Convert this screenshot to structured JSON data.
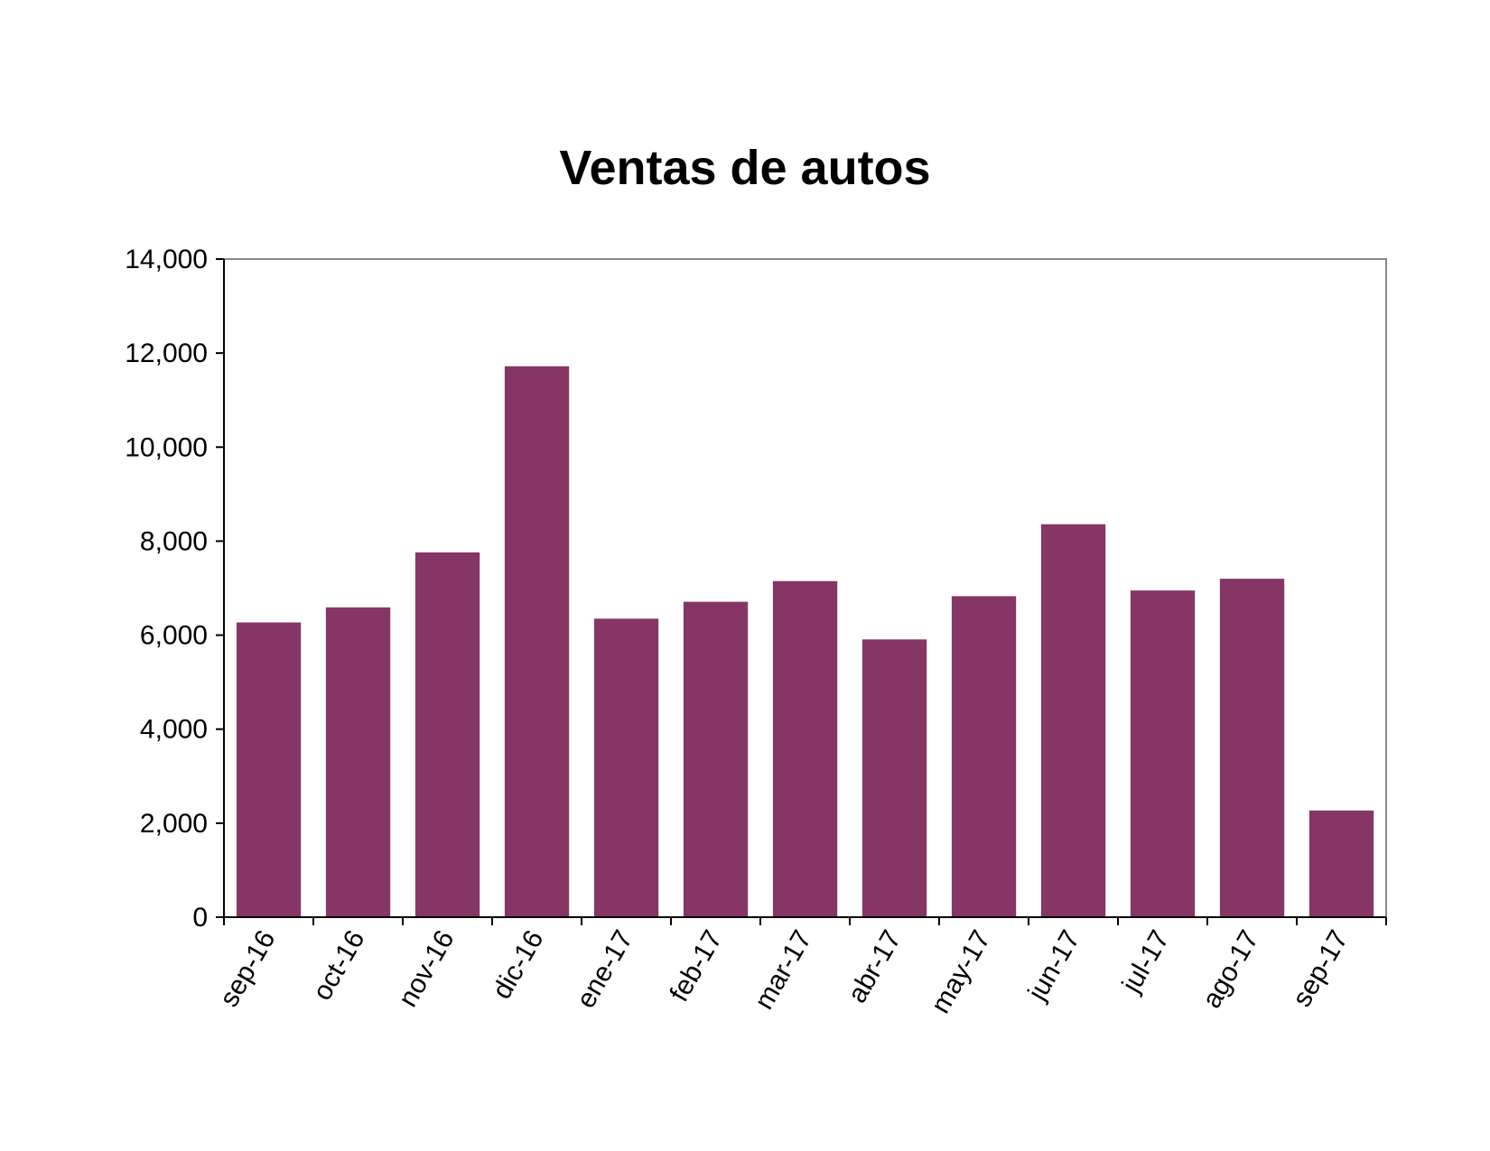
{
  "chart_data": {
    "type": "bar",
    "title": "Ventas de autos",
    "xlabel": "",
    "ylabel": "",
    "categories": [
      "sep-16",
      "oct-16",
      "nov-16",
      "dic-16",
      "ene-17",
      "feb-17",
      "mar-17",
      "abr-17",
      "may-17",
      "jun-17",
      "jul-17",
      "ago-17",
      "sep-17"
    ],
    "values": [
      6270,
      6590,
      7760,
      11720,
      6350,
      6710,
      7150,
      5910,
      6830,
      8360,
      6950,
      7200,
      2270
    ],
    "ylim": [
      0,
      14000
    ],
    "yticks": [
      "0",
      "2,000",
      "4,000",
      "6,000",
      "8,000",
      "10,000",
      "12,000",
      "14,000"
    ],
    "grid": false,
    "legend": "none",
    "bar_color": "#853664",
    "axis_color": "#000000",
    "frame_color": "#888888"
  }
}
